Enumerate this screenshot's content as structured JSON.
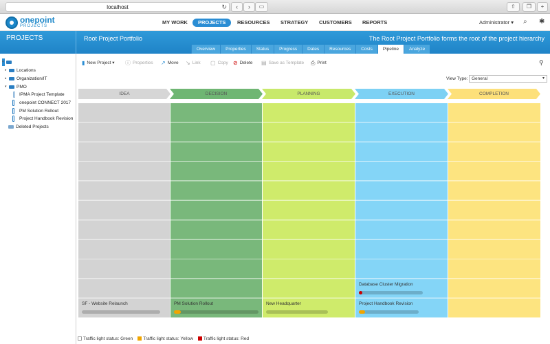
{
  "browser": {
    "url": "localhost",
    "back": "‹",
    "forward": "›",
    "reload": "↻"
  },
  "app": {
    "logo_line1": "onepoint",
    "logo_line2": "PROJECTS",
    "nav": [
      "MY WORK",
      "PROJECTS",
      "RESOURCES",
      "STRATEGY",
      "CUSTOMERS",
      "REPORTS"
    ],
    "active_nav": "PROJECTS",
    "user": "Administrator ▾"
  },
  "band": {
    "section": "PROJECTS",
    "title": "Root Project Portfolio",
    "description": "The Root Project Portfolio forms the root of the project hierarchy",
    "tabs": [
      "Overview",
      "Properties",
      "Status",
      "Progress",
      "Dates",
      "Resources",
      "Costs",
      "Pipeline",
      "Analyze"
    ],
    "active_tab": "Pipeline"
  },
  "tree": [
    {
      "label": "Root Project Portfolio",
      "kind": "portfolio",
      "expanded": true,
      "selected": true
    },
    {
      "label": "Locations",
      "kind": "portfolio",
      "expanded": false
    },
    {
      "label": "Organization/IT",
      "kind": "portfolio",
      "expanded": false
    },
    {
      "label": "PMO",
      "kind": "portfolio",
      "expanded": true
    },
    {
      "label": "IPMA Project Template",
      "kind": "template"
    },
    {
      "label": "onepoint CONNECT 2017",
      "kind": "project"
    },
    {
      "label": "PM Solution Rollout",
      "kind": "project"
    },
    {
      "label": "Project Handbook Revision",
      "kind": "project"
    },
    {
      "label": "Deleted Projects",
      "kind": "portfolio"
    }
  ],
  "toolbar": {
    "new_project": "New Project",
    "properties": "Properties",
    "move": "Move",
    "link": "Link",
    "copy": "Copy",
    "delete": "Delete",
    "save_template": "Save as Template",
    "print": "Print"
  },
  "view_type": {
    "label": "View Type:",
    "value": "General"
  },
  "stages": [
    {
      "label": "IDEA",
      "color": "#d6d6d6",
      "column": "#d3d3d3"
    },
    {
      "label": "DECISION",
      "color": "#6fb673",
      "column": "#79b87b"
    },
    {
      "label": "PLANNING",
      "color": "#c8e96b",
      "column": "#cfeb6b"
    },
    {
      "label": "EXECUTION",
      "color": "#7dd1f4",
      "column": "#84d5f7"
    },
    {
      "label": "COMPLETION",
      "color": "#fde07a",
      "column": "#fde480"
    }
  ],
  "cards": [
    {
      "stage": 0,
      "row": 10,
      "name": "SF - Website Relaunch",
      "progress": 0,
      "status": "green"
    },
    {
      "stage": 1,
      "row": 10,
      "name": "PM Solution Rollout",
      "progress": 0.08,
      "status": "yellow"
    },
    {
      "stage": 2,
      "row": 10,
      "name": "New Headquarter",
      "progress": 0,
      "status": "green"
    },
    {
      "stage": 3,
      "row": 9,
      "name": "Database Cluster Migration",
      "progress": 0.04,
      "status": "red"
    },
    {
      "stage": 3,
      "row": 10,
      "name": "Project Handbook Revision",
      "progress": 0.1,
      "status": "yellow"
    }
  ],
  "status_colors": {
    "green": "#ffffff",
    "yellow": "#f0a500",
    "red": "#cc0000"
  },
  "legend": [
    {
      "label": "Traffic light status: Green",
      "color": "#ffffff"
    },
    {
      "label": "Traffic light status: Yellow",
      "color": "#f0a500"
    },
    {
      "label": "Traffic light status: Red",
      "color": "#cc0000"
    }
  ]
}
